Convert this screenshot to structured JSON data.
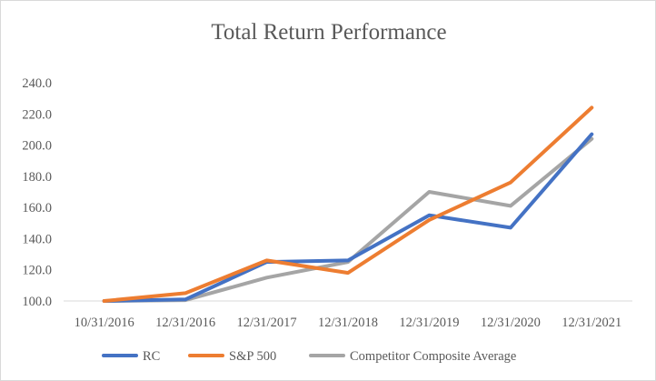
{
  "chart_data": {
    "type": "line",
    "title": "Total Return Performance",
    "xlabel": "",
    "ylabel": "",
    "categories": [
      "10/31/2016",
      "12/31/2016",
      "12/31/2017",
      "12/31/2018",
      "12/31/2019",
      "12/31/2020",
      "12/31/2021"
    ],
    "y_ticks": [
      "100.0",
      "120.0",
      "140.0",
      "160.0",
      "180.0",
      "200.0",
      "220.0",
      "240.0"
    ],
    "ylim": [
      100,
      240
    ],
    "grid": false,
    "legend_position": "bottom",
    "series": [
      {
        "name": "RC",
        "color": "#4472C4",
        "values": [
          100,
          101,
          125,
          126,
          155,
          147,
          207
        ]
      },
      {
        "name": "S&P 500",
        "color": "#ED7D31",
        "values": [
          100,
          105,
          126,
          118,
          152,
          176,
          224
        ]
      },
      {
        "name": "Competitor Composite Average",
        "color": "#A5A5A5",
        "values": [
          100,
          100.5,
          115,
          125,
          170,
          161,
          204
        ]
      }
    ]
  }
}
